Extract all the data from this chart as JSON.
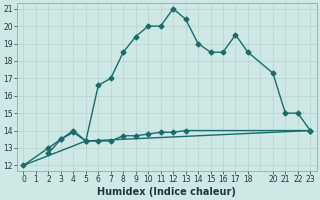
{
  "xlabel": "Humidex (Indice chaleur)",
  "bg_color": "#cde8e5",
  "grid_color": "#b8d4d0",
  "line_color": "#1a6b6b",
  "xlim": [
    -0.5,
    23.5
  ],
  "ylim": [
    11.7,
    21.3
  ],
  "xtick_vals": [
    0,
    1,
    2,
    3,
    4,
    5,
    6,
    7,
    8,
    9,
    10,
    11,
    12,
    13,
    14,
    15,
    16,
    17,
    18,
    20,
    21,
    22,
    23
  ],
  "xtick_labels": [
    "0",
    "1",
    "2",
    "3",
    "4",
    "5",
    "6",
    "7",
    "8",
    "9",
    "10",
    "11",
    "12",
    "13",
    "14",
    "15",
    "16",
    "17",
    "18",
    "20",
    "21",
    "22",
    "23"
  ],
  "ytick_vals": [
    12,
    13,
    14,
    15,
    16,
    17,
    18,
    19,
    20,
    21
  ],
  "series1_x": [
    0,
    2,
    3,
    4,
    5,
    6,
    7,
    8,
    9,
    10,
    11,
    12,
    13,
    14,
    15,
    16,
    17,
    18,
    20,
    21,
    22,
    23
  ],
  "series1_y": [
    12.0,
    13.0,
    13.5,
    14.0,
    13.4,
    16.6,
    17.0,
    18.5,
    19.4,
    20.0,
    20.0,
    21.0,
    20.4,
    19.0,
    18.5,
    18.5,
    19.5,
    18.5,
    17.3,
    15.0,
    15.0,
    14.0
  ],
  "series2_x": [
    2,
    3,
    4,
    5,
    6,
    7,
    8,
    9,
    10,
    11,
    12,
    13,
    23
  ],
  "series2_y": [
    12.7,
    13.5,
    13.9,
    13.4,
    13.4,
    13.4,
    13.7,
    13.7,
    13.8,
    13.9,
    13.9,
    14.0,
    14.0
  ],
  "series3_x": [
    0,
    5,
    23
  ],
  "series3_y": [
    12.0,
    13.4,
    14.0
  ],
  "marker": "D",
  "markersize": 2.5,
  "linewidth": 1.0,
  "tick_fontsize": 5.5,
  "xlabel_fontsize": 7
}
